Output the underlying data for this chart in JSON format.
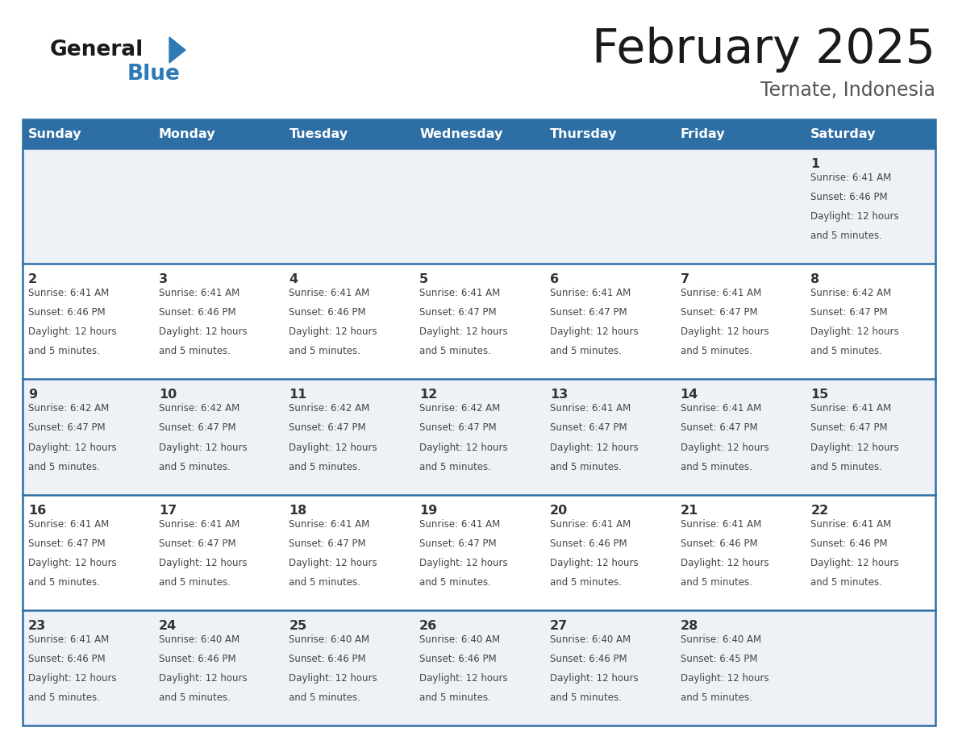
{
  "title": "February 2025",
  "subtitle": "Ternate, Indonesia",
  "days_of_week": [
    "Sunday",
    "Monday",
    "Tuesday",
    "Wednesday",
    "Thursday",
    "Friday",
    "Saturday"
  ],
  "header_bg": "#2D6EA5",
  "header_text": "#FFFFFF",
  "cell_bg_light": "#EEF2F7",
  "cell_bg_white": "#FFFFFF",
  "grid_line_color": "#2D6EA5",
  "day_number_color": "#333333",
  "text_color": "#444444",
  "title_color": "#1a1a1a",
  "subtitle_color": "#555555",
  "logo_general_color": "#1a1a1a",
  "logo_blue_color": "#2E7AB5",
  "weeks": [
    [
      null,
      null,
      null,
      null,
      null,
      null,
      1
    ],
    [
      2,
      3,
      4,
      5,
      6,
      7,
      8
    ],
    [
      9,
      10,
      11,
      12,
      13,
      14,
      15
    ],
    [
      16,
      17,
      18,
      19,
      20,
      21,
      22
    ],
    [
      23,
      24,
      25,
      26,
      27,
      28,
      null
    ]
  ],
  "sunrise_data": {
    "1": "6:41 AM",
    "2": "6:41 AM",
    "3": "6:41 AM",
    "4": "6:41 AM",
    "5": "6:41 AM",
    "6": "6:41 AM",
    "7": "6:41 AM",
    "8": "6:42 AM",
    "9": "6:42 AM",
    "10": "6:42 AM",
    "11": "6:42 AM",
    "12": "6:42 AM",
    "13": "6:41 AM",
    "14": "6:41 AM",
    "15": "6:41 AM",
    "16": "6:41 AM",
    "17": "6:41 AM",
    "18": "6:41 AM",
    "19": "6:41 AM",
    "20": "6:41 AM",
    "21": "6:41 AM",
    "22": "6:41 AM",
    "23": "6:41 AM",
    "24": "6:40 AM",
    "25": "6:40 AM",
    "26": "6:40 AM",
    "27": "6:40 AM",
    "28": "6:40 AM"
  },
  "sunset_data": {
    "1": "6:46 PM",
    "2": "6:46 PM",
    "3": "6:46 PM",
    "4": "6:46 PM",
    "5": "6:47 PM",
    "6": "6:47 PM",
    "7": "6:47 PM",
    "8": "6:47 PM",
    "9": "6:47 PM",
    "10": "6:47 PM",
    "11": "6:47 PM",
    "12": "6:47 PM",
    "13": "6:47 PM",
    "14": "6:47 PM",
    "15": "6:47 PM",
    "16": "6:47 PM",
    "17": "6:47 PM",
    "18": "6:47 PM",
    "19": "6:47 PM",
    "20": "6:46 PM",
    "21": "6:46 PM",
    "22": "6:46 PM",
    "23": "6:46 PM",
    "24": "6:46 PM",
    "25": "6:46 PM",
    "26": "6:46 PM",
    "27": "6:46 PM",
    "28": "6:45 PM"
  },
  "daylight_line1": "Daylight: 12 hours",
  "daylight_line2": "and 5 minutes."
}
